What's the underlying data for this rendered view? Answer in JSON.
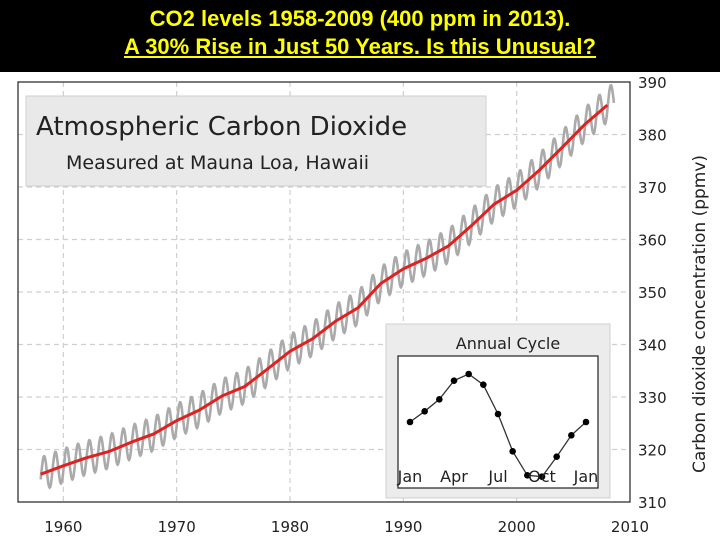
{
  "header": {
    "line1": "CO2 levels 1958-2009 (400 ppm in 2013).",
    "line2": "A 30% Rise in Just 50 Years. Is this Unusual?",
    "text_color": "#ffff00",
    "background": "#000000"
  },
  "chart_data": [
    {
      "type": "line",
      "title": "Atmospheric Carbon Dioxide",
      "subtitle": "Measured at Mauna Loa, Hawaii",
      "xlabel": "",
      "ylabel": "Carbon dioxide concentration (ppmv)",
      "xlim": [
        1956,
        2010
      ],
      "ylim": [
        310,
        390
      ],
      "x_ticks": [
        "1960",
        "1970",
        "1980",
        "1990",
        "2000",
        "2010"
      ],
      "y_ticks": [
        "310",
        "320",
        "330",
        "340",
        "350",
        "360",
        "370",
        "380",
        "390"
      ],
      "y_axis_side": "right",
      "grid": true,
      "seasonal_amplitude": 3.2,
      "series": [
        {
          "color": "#dd2222",
          "style": "annual-mean",
          "x": [
            1958,
            1960,
            1962,
            1964,
            1966,
            1968,
            1970,
            1972,
            1974,
            1976,
            1978,
            1980,
            1982,
            1984,
            1986,
            1988,
            1990,
            1992,
            1994,
            1996,
            1998,
            2000,
            2002,
            2004,
            2006,
            2008
          ],
          "y": [
            315.3,
            316.9,
            318.4,
            319.6,
            321.4,
            323.0,
            325.5,
            327.5,
            330.2,
            332.0,
            335.3,
            338.7,
            341.1,
            344.4,
            347.0,
            351.6,
            354.4,
            356.4,
            358.8,
            362.6,
            366.7,
            369.4,
            373.2,
            377.5,
            381.9,
            385.6
          ]
        },
        {
          "color": "#aaaaaa",
          "style": "monthly-seasonal",
          "x": [
            1958,
            2008.6
          ],
          "y": [
            315.3,
            385.6
          ]
        }
      ]
    },
    {
      "type": "line",
      "title": "Annual Cycle",
      "x_ticks": [
        "Jan",
        "Apr",
        "Jul",
        "Oct",
        "Jan"
      ],
      "ylim": [
        -4.2,
        4.2
      ],
      "series": [
        {
          "color": "#000000",
          "x": [
            0,
            1,
            2,
            3,
            4,
            5,
            6,
            7,
            8,
            9,
            10,
            11,
            12
          ],
          "y": [
            0.0,
            0.8,
            1.7,
            3.1,
            3.6,
            2.8,
            0.6,
            -2.2,
            -4.0,
            -4.1,
            -2.6,
            -1.0,
            0.0
          ]
        }
      ]
    }
  ]
}
